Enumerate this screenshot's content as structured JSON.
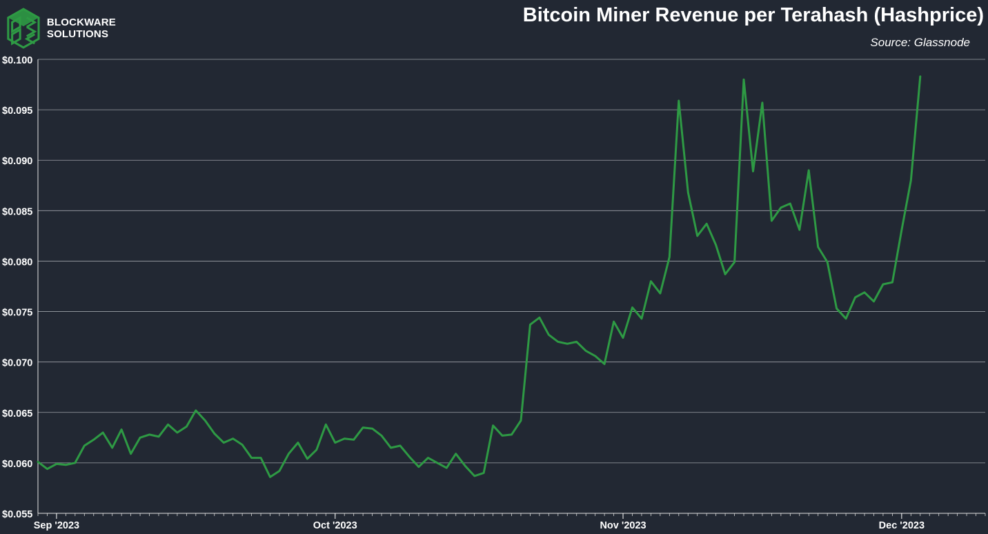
{
  "brand": {
    "line1": "BLOCKWARE",
    "line2": "SOLUTIONS",
    "accent": "#2e9a44"
  },
  "header": {
    "title": "Bitcoin Miner Revenue per Terahash (Hashprice)",
    "source": "Source: Glassnode"
  },
  "chart_data": {
    "type": "line",
    "title": "Bitcoin Miner Revenue per Terahash (Hashprice)",
    "xlabel": "",
    "ylabel": "",
    "x_start": "2023-08-30",
    "x_end": "2023-12-10",
    "x_ticks": [
      {
        "date": "2023-09-01",
        "label": "Sep '2023"
      },
      {
        "date": "2023-10-01",
        "label": "Oct '2023"
      },
      {
        "date": "2023-11-01",
        "label": "Nov '2023"
      },
      {
        "date": "2023-12-01",
        "label": "Dec '2023"
      }
    ],
    "ylim": [
      0.055,
      0.1
    ],
    "y_ticks": [
      0.055,
      0.06,
      0.065,
      0.07,
      0.075,
      0.08,
      0.085,
      0.09,
      0.095,
      0.1
    ],
    "y_tick_labels": [
      "$0.055",
      "$0.060",
      "$0.065",
      "$0.070",
      "$0.075",
      "$0.080",
      "$0.085",
      "$0.090",
      "$0.095",
      "$0.100"
    ],
    "grid": true,
    "line_color": "#2e9a44",
    "series": [
      {
        "name": "",
        "points": [
          [
            "2023-08-30",
            0.0601
          ],
          [
            "2023-08-31",
            0.0594
          ],
          [
            "2023-09-01",
            0.0599
          ],
          [
            "2023-09-02",
            0.0598
          ],
          [
            "2023-09-03",
            0.06
          ],
          [
            "2023-09-04",
            0.0617
          ],
          [
            "2023-09-05",
            0.0623
          ],
          [
            "2023-09-06",
            0.063
          ],
          [
            "2023-09-07",
            0.0615
          ],
          [
            "2023-09-08",
            0.0633
          ],
          [
            "2023-09-09",
            0.0609
          ],
          [
            "2023-09-10",
            0.0625
          ],
          [
            "2023-09-11",
            0.0628
          ],
          [
            "2023-09-12",
            0.0626
          ],
          [
            "2023-09-13",
            0.0638
          ],
          [
            "2023-09-14",
            0.063
          ],
          [
            "2023-09-15",
            0.0636
          ],
          [
            "2023-09-16",
            0.0652
          ],
          [
            "2023-09-17",
            0.0642
          ],
          [
            "2023-09-18",
            0.0629
          ],
          [
            "2023-09-19",
            0.062
          ],
          [
            "2023-09-20",
            0.0624
          ],
          [
            "2023-09-21",
            0.0618
          ],
          [
            "2023-09-22",
            0.0605
          ],
          [
            "2023-09-23",
            0.0605
          ],
          [
            "2023-09-24",
            0.0586
          ],
          [
            "2023-09-25",
            0.0592
          ],
          [
            "2023-09-26",
            0.0609
          ],
          [
            "2023-09-27",
            0.062
          ],
          [
            "2023-09-28",
            0.0604
          ],
          [
            "2023-09-29",
            0.0613
          ],
          [
            "2023-09-30",
            0.0638
          ],
          [
            "2023-10-01",
            0.062
          ],
          [
            "2023-10-02",
            0.0624
          ],
          [
            "2023-10-03",
            0.0623
          ],
          [
            "2023-10-04",
            0.0635
          ],
          [
            "2023-10-05",
            0.0634
          ],
          [
            "2023-10-06",
            0.0627
          ],
          [
            "2023-10-07",
            0.0615
          ],
          [
            "2023-10-08",
            0.0617
          ],
          [
            "2023-10-09",
            0.0606
          ],
          [
            "2023-10-10",
            0.0596
          ],
          [
            "2023-10-11",
            0.0605
          ],
          [
            "2023-10-12",
            0.06
          ],
          [
            "2023-10-13",
            0.0595
          ],
          [
            "2023-10-14",
            0.0609
          ],
          [
            "2023-10-15",
            0.0597
          ],
          [
            "2023-10-16",
            0.0587
          ],
          [
            "2023-10-17",
            0.059
          ],
          [
            "2023-10-18",
            0.0637
          ],
          [
            "2023-10-19",
            0.0627
          ],
          [
            "2023-10-20",
            0.0628
          ],
          [
            "2023-10-21",
            0.0642
          ],
          [
            "2023-10-22",
            0.0737
          ],
          [
            "2023-10-23",
            0.0744
          ],
          [
            "2023-10-24",
            0.0727
          ],
          [
            "2023-10-25",
            0.072
          ],
          [
            "2023-10-26",
            0.0718
          ],
          [
            "2023-10-27",
            0.072
          ],
          [
            "2023-10-28",
            0.0711
          ],
          [
            "2023-10-29",
            0.0706
          ],
          [
            "2023-10-30",
            0.0698
          ],
          [
            "2023-10-31",
            0.074
          ],
          [
            "2023-11-01",
            0.0724
          ],
          [
            "2023-11-02",
            0.0754
          ],
          [
            "2023-11-03",
            0.0743
          ],
          [
            "2023-11-04",
            0.078
          ],
          [
            "2023-11-05",
            0.0768
          ],
          [
            "2023-11-06",
            0.0804
          ],
          [
            "2023-11-07",
            0.0959
          ],
          [
            "2023-11-08",
            0.0868
          ],
          [
            "2023-11-09",
            0.0825
          ],
          [
            "2023-11-10",
            0.0837
          ],
          [
            "2023-11-11",
            0.0816
          ],
          [
            "2023-11-12",
            0.0787
          ],
          [
            "2023-11-13",
            0.0799
          ],
          [
            "2023-11-14",
            0.098
          ],
          [
            "2023-11-15",
            0.0889
          ],
          [
            "2023-11-16",
            0.0957
          ],
          [
            "2023-11-17",
            0.084
          ],
          [
            "2023-11-18",
            0.0853
          ],
          [
            "2023-11-19",
            0.0857
          ],
          [
            "2023-11-20",
            0.0831
          ],
          [
            "2023-11-21",
            0.089
          ],
          [
            "2023-11-22",
            0.0814
          ],
          [
            "2023-11-23",
            0.0799
          ],
          [
            "2023-11-24",
            0.0753
          ],
          [
            "2023-11-25",
            0.0743
          ],
          [
            "2023-11-26",
            0.0764
          ],
          [
            "2023-11-27",
            0.0769
          ],
          [
            "2023-11-28",
            0.076
          ],
          [
            "2023-11-29",
            0.0777
          ],
          [
            "2023-11-30",
            0.0779
          ],
          [
            "2023-12-01",
            0.0831
          ],
          [
            "2023-12-02",
            0.088
          ],
          [
            "2023-12-03",
            0.0983
          ]
        ]
      }
    ]
  }
}
